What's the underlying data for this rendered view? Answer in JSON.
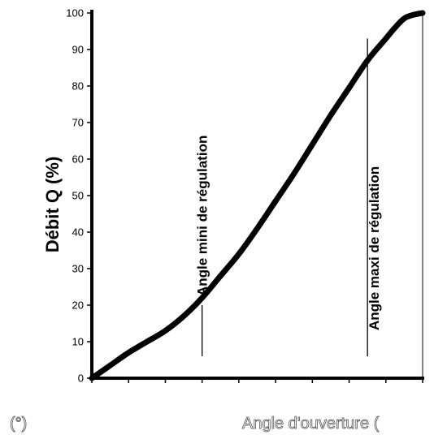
{
  "chart_data": {
    "type": "line",
    "ylabel": "Débit Q (%)",
    "xlabel": "Angle d'ouverture (",
    "x_unit": "(°)",
    "ylim": [
      0,
      100
    ],
    "xlim": [
      0,
      90
    ],
    "y_ticks": [
      0,
      10,
      20,
      30,
      40,
      50,
      60,
      70,
      80,
      90,
      100
    ],
    "x_ticks": [
      0,
      10,
      20,
      30,
      40,
      50,
      60,
      70,
      80,
      90
    ],
    "series": [
      {
        "x": [
          0,
          5,
          10,
          15,
          20,
          25,
          30,
          35,
          40,
          45,
          50,
          55,
          60,
          65,
          70,
          75,
          80,
          82.5,
          85,
          87.5,
          90
        ],
        "y": [
          0,
          3.5,
          7,
          10,
          13,
          17,
          22,
          28,
          34,
          41,
          48.5,
          56,
          64,
          72,
          79.5,
          87,
          93,
          96,
          98.5,
          99.5,
          100
        ]
      }
    ],
    "annotations": [
      {
        "text": "Angle mini de régulation",
        "x": 30,
        "y_from": 6,
        "y_to": 20
      },
      {
        "text": "Angle maxi de régulation",
        "x": 75,
        "y_from": 6,
        "y_to": 93
      }
    ]
  }
}
